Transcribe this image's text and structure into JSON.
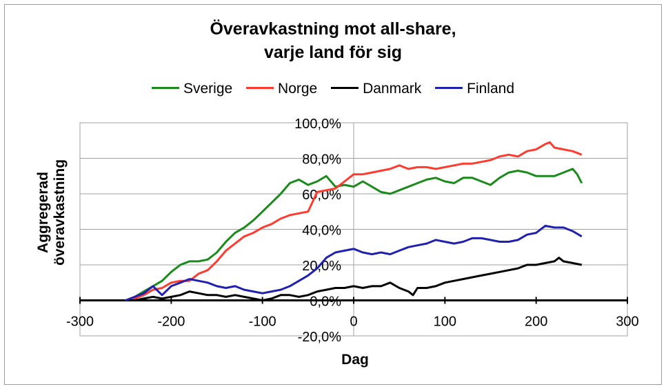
{
  "chart_data": {
    "type": "line",
    "title_line1": "Överavkastning mot all-share,",
    "title_line2": "varje land för sig",
    "xlabel": "Dag",
    "ylabel_line1": "Aggregerad",
    "ylabel_line2": "överavkastning",
    "xlim": [
      -300,
      300
    ],
    "ylim": [
      -0.2,
      1.0
    ],
    "x_ticks": [
      -300,
      -200,
      -100,
      0,
      100,
      200,
      300
    ],
    "x_tick_labels": [
      "-300",
      "-200",
      "-100",
      "0",
      "100",
      "200",
      "300"
    ],
    "y_ticks": [
      -0.2,
      0.0,
      0.2,
      0.4,
      0.6,
      0.8,
      1.0
    ],
    "y_tick_labels": [
      "-20,0%",
      "0,0%",
      "20,0%",
      "40,0%",
      "60,0%",
      "80,0%",
      "100,0%"
    ],
    "grid": "horizontal",
    "legend_position": "top",
    "series": [
      {
        "name": "Sverige",
        "color": "#1a8a1a",
        "points": [
          [
            -250,
            0.0
          ],
          [
            -240,
            0.02
          ],
          [
            -230,
            0.05
          ],
          [
            -220,
            0.08
          ],
          [
            -210,
            0.11
          ],
          [
            -200,
            0.16
          ],
          [
            -190,
            0.2
          ],
          [
            -180,
            0.22
          ],
          [
            -170,
            0.22
          ],
          [
            -160,
            0.23
          ],
          [
            -150,
            0.27
          ],
          [
            -140,
            0.33
          ],
          [
            -130,
            0.38
          ],
          [
            -120,
            0.41
          ],
          [
            -110,
            0.45
          ],
          [
            -100,
            0.5
          ],
          [
            -90,
            0.55
          ],
          [
            -80,
            0.6
          ],
          [
            -70,
            0.66
          ],
          [
            -60,
            0.68
          ],
          [
            -50,
            0.65
          ],
          [
            -40,
            0.67
          ],
          [
            -30,
            0.7
          ],
          [
            -20,
            0.64
          ],
          [
            -10,
            0.65
          ],
          [
            0,
            0.64
          ],
          [
            10,
            0.67
          ],
          [
            20,
            0.64
          ],
          [
            30,
            0.61
          ],
          [
            40,
            0.6
          ],
          [
            50,
            0.62
          ],
          [
            60,
            0.64
          ],
          [
            70,
            0.66
          ],
          [
            80,
            0.68
          ],
          [
            90,
            0.69
          ],
          [
            100,
            0.67
          ],
          [
            110,
            0.66
          ],
          [
            120,
            0.69
          ],
          [
            130,
            0.69
          ],
          [
            140,
            0.67
          ],
          [
            150,
            0.65
          ],
          [
            160,
            0.69
          ],
          [
            170,
            0.72
          ],
          [
            180,
            0.73
          ],
          [
            190,
            0.72
          ],
          [
            200,
            0.7
          ],
          [
            210,
            0.7
          ],
          [
            220,
            0.7
          ],
          [
            230,
            0.72
          ],
          [
            240,
            0.74
          ],
          [
            245,
            0.71
          ],
          [
            250,
            0.66
          ]
        ]
      },
      {
        "name": "Norge",
        "color": "#ff3b2f",
        "points": [
          [
            -250,
            0.0
          ],
          [
            -240,
            0.01
          ],
          [
            -230,
            0.03
          ],
          [
            -220,
            0.06
          ],
          [
            -210,
            0.07
          ],
          [
            -200,
            0.1
          ],
          [
            -190,
            0.11
          ],
          [
            -180,
            0.11
          ],
          [
            -170,
            0.15
          ],
          [
            -160,
            0.17
          ],
          [
            -150,
            0.22
          ],
          [
            -140,
            0.28
          ],
          [
            -130,
            0.32
          ],
          [
            -120,
            0.36
          ],
          [
            -110,
            0.38
          ],
          [
            -100,
            0.41
          ],
          [
            -90,
            0.43
          ],
          [
            -80,
            0.46
          ],
          [
            -70,
            0.48
          ],
          [
            -60,
            0.49
          ],
          [
            -50,
            0.5
          ],
          [
            -40,
            0.61
          ],
          [
            -30,
            0.62
          ],
          [
            -20,
            0.63
          ],
          [
            -10,
            0.67
          ],
          [
            0,
            0.71
          ],
          [
            10,
            0.71
          ],
          [
            20,
            0.72
          ],
          [
            30,
            0.73
          ],
          [
            40,
            0.74
          ],
          [
            50,
            0.76
          ],
          [
            60,
            0.74
          ],
          [
            70,
            0.75
          ],
          [
            80,
            0.75
          ],
          [
            90,
            0.74
          ],
          [
            100,
            0.75
          ],
          [
            110,
            0.76
          ],
          [
            120,
            0.77
          ],
          [
            130,
            0.77
          ],
          [
            140,
            0.78
          ],
          [
            150,
            0.79
          ],
          [
            160,
            0.81
          ],
          [
            170,
            0.82
          ],
          [
            180,
            0.81
          ],
          [
            190,
            0.84
          ],
          [
            200,
            0.85
          ],
          [
            210,
            0.88
          ],
          [
            215,
            0.89
          ],
          [
            220,
            0.86
          ],
          [
            230,
            0.85
          ],
          [
            240,
            0.84
          ],
          [
            250,
            0.82
          ]
        ]
      },
      {
        "name": "Danmark",
        "color": "#000000",
        "points": [
          [
            -250,
            0.0
          ],
          [
            -240,
            0.0
          ],
          [
            -230,
            0.01
          ],
          [
            -220,
            0.02
          ],
          [
            -210,
            0.01
          ],
          [
            -200,
            0.02
          ],
          [
            -190,
            0.03
          ],
          [
            -180,
            0.05
          ],
          [
            -170,
            0.04
          ],
          [
            -160,
            0.03
          ],
          [
            -150,
            0.03
          ],
          [
            -140,
            0.02
          ],
          [
            -130,
            0.03
          ],
          [
            -120,
            0.02
          ],
          [
            -110,
            0.01
          ],
          [
            -100,
            0.0
          ],
          [
            -90,
            0.01
          ],
          [
            -80,
            0.03
          ],
          [
            -70,
            0.03
          ],
          [
            -60,
            0.02
          ],
          [
            -50,
            0.03
          ],
          [
            -40,
            0.05
          ],
          [
            -30,
            0.06
          ],
          [
            -20,
            0.07
          ],
          [
            -10,
            0.07
          ],
          [
            0,
            0.08
          ],
          [
            10,
            0.07
          ],
          [
            20,
            0.08
          ],
          [
            30,
            0.08
          ],
          [
            40,
            0.1
          ],
          [
            50,
            0.07
          ],
          [
            60,
            0.05
          ],
          [
            65,
            0.03
          ],
          [
            70,
            0.07
          ],
          [
            80,
            0.07
          ],
          [
            90,
            0.08
          ],
          [
            100,
            0.1
          ],
          [
            110,
            0.11
          ],
          [
            120,
            0.12
          ],
          [
            130,
            0.13
          ],
          [
            140,
            0.14
          ],
          [
            150,
            0.15
          ],
          [
            160,
            0.16
          ],
          [
            170,
            0.17
          ],
          [
            180,
            0.18
          ],
          [
            190,
            0.2
          ],
          [
            200,
            0.2
          ],
          [
            210,
            0.21
          ],
          [
            220,
            0.22
          ],
          [
            225,
            0.24
          ],
          [
            230,
            0.22
          ],
          [
            240,
            0.21
          ],
          [
            250,
            0.2
          ]
        ]
      },
      {
        "name": "Finland",
        "color": "#2020b0",
        "points": [
          [
            -250,
            0.0
          ],
          [
            -240,
            0.02
          ],
          [
            -230,
            0.04
          ],
          [
            -220,
            0.08
          ],
          [
            -210,
            0.03
          ],
          [
            -200,
            0.08
          ],
          [
            -190,
            0.1
          ],
          [
            -180,
            0.12
          ],
          [
            -170,
            0.11
          ],
          [
            -160,
            0.1
          ],
          [
            -150,
            0.08
          ],
          [
            -140,
            0.07
          ],
          [
            -130,
            0.08
          ],
          [
            -120,
            0.06
          ],
          [
            -110,
            0.05
          ],
          [
            -100,
            0.04
          ],
          [
            -90,
            0.05
          ],
          [
            -80,
            0.06
          ],
          [
            -70,
            0.08
          ],
          [
            -60,
            0.11
          ],
          [
            -50,
            0.14
          ],
          [
            -40,
            0.18
          ],
          [
            -30,
            0.24
          ],
          [
            -20,
            0.27
          ],
          [
            -10,
            0.28
          ],
          [
            0,
            0.29
          ],
          [
            10,
            0.27
          ],
          [
            20,
            0.26
          ],
          [
            30,
            0.27
          ],
          [
            40,
            0.26
          ],
          [
            50,
            0.28
          ],
          [
            60,
            0.3
          ],
          [
            70,
            0.31
          ],
          [
            80,
            0.32
          ],
          [
            90,
            0.34
          ],
          [
            100,
            0.33
          ],
          [
            110,
            0.32
          ],
          [
            120,
            0.33
          ],
          [
            130,
            0.35
          ],
          [
            140,
            0.35
          ],
          [
            150,
            0.34
          ],
          [
            160,
            0.33
          ],
          [
            170,
            0.33
          ],
          [
            180,
            0.34
          ],
          [
            190,
            0.37
          ],
          [
            200,
            0.38
          ],
          [
            210,
            0.42
          ],
          [
            220,
            0.41
          ],
          [
            230,
            0.41
          ],
          [
            240,
            0.39
          ],
          [
            250,
            0.36
          ]
        ]
      }
    ]
  }
}
